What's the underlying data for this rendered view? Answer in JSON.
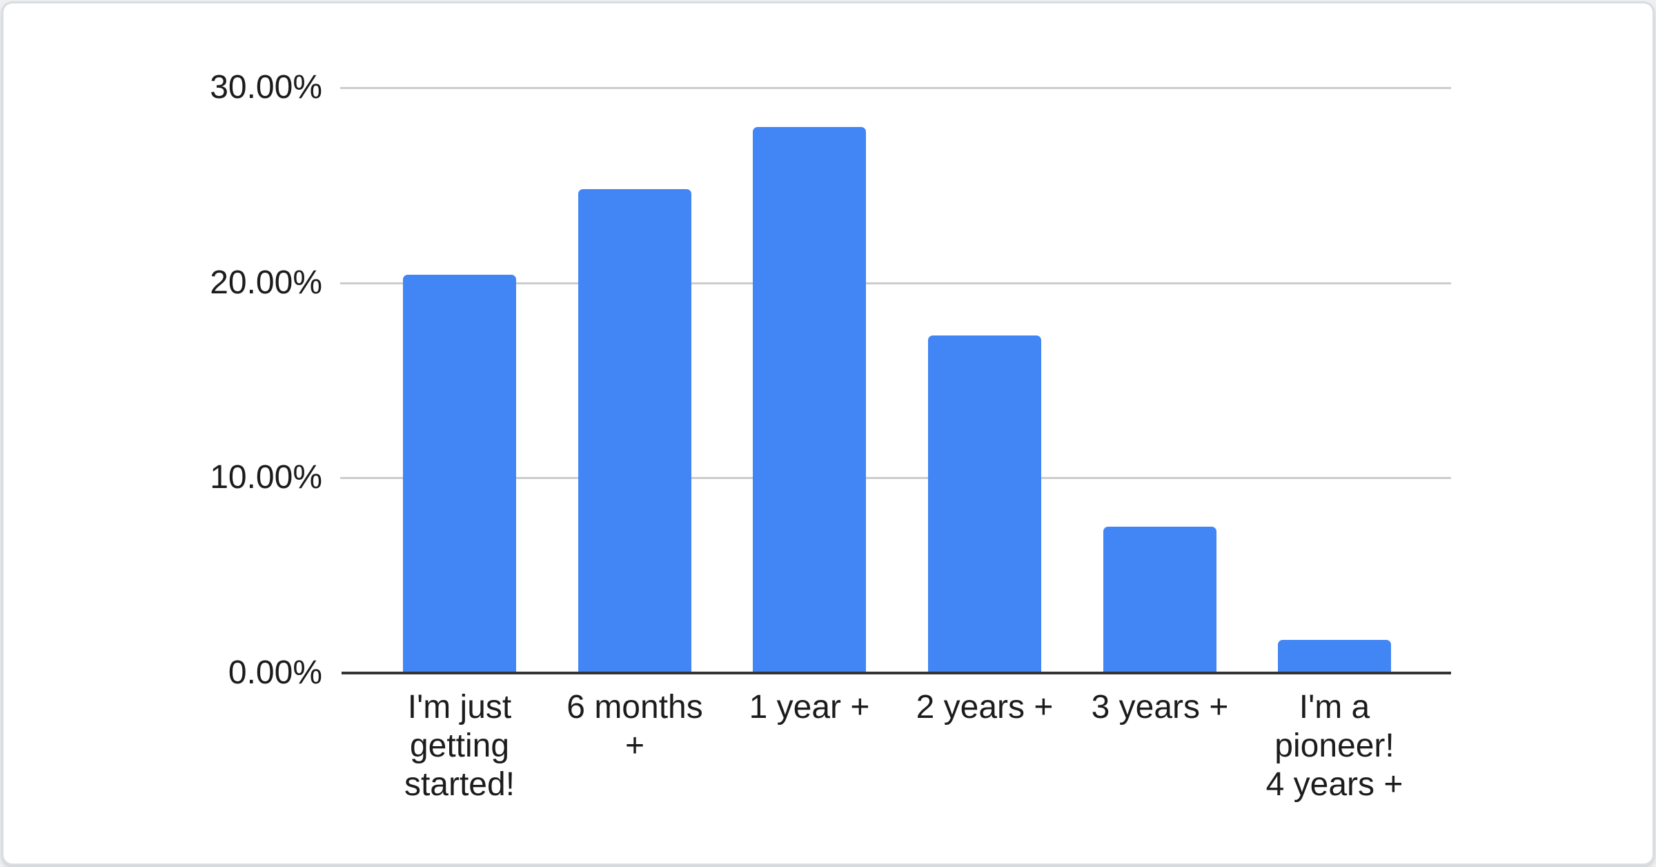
{
  "chart_data": {
    "type": "bar",
    "title": "",
    "xlabel": "",
    "ylabel": "",
    "legend": "none",
    "grid": true,
    "categories": [
      [
        "I'm just",
        "getting",
        "started!"
      ],
      [
        "6 months",
        "+"
      ],
      [
        "1 year +"
      ],
      [
        "2 years +"
      ],
      [
        "3 years +"
      ],
      [
        "I'm a",
        "pioneer!",
        "4 years +"
      ]
    ],
    "values": [
      20.4,
      24.8,
      28.0,
      17.3,
      7.5,
      1.7
    ],
    "value_unit": "%",
    "ylim": [
      0,
      30
    ],
    "y_ticks": [
      {
        "value": 0,
        "label": "0.00%"
      },
      {
        "value": 10,
        "label": "10.00%"
      },
      {
        "value": 20,
        "label": "20.00%"
      },
      {
        "value": 30,
        "label": "30.00%"
      }
    ],
    "colors": {
      "bar": "#4285F4",
      "gridline": "#cccccc",
      "axis_line": "#333333",
      "label_text": "#1c1c1c"
    }
  }
}
